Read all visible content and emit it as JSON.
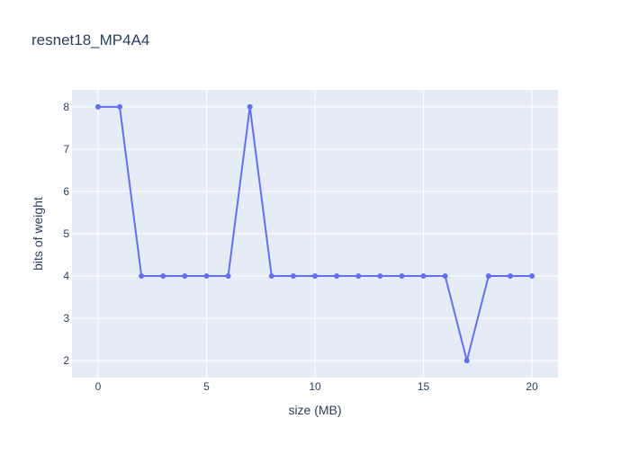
{
  "chart_data": {
    "type": "line",
    "title": "resnet18_MP4A4",
    "xlabel": "size (MB)",
    "ylabel": "bits of weight",
    "x": [
      0,
      1,
      2,
      3,
      4,
      5,
      6,
      7,
      8,
      9,
      10,
      11,
      12,
      13,
      14,
      15,
      16,
      17,
      18,
      19,
      20
    ],
    "series": [
      {
        "values": [
          8,
          8,
          4,
          4,
          4,
          4,
          4,
          8,
          4,
          4,
          4,
          4,
          4,
          4,
          4,
          4,
          4,
          2,
          4,
          4,
          4
        ]
      }
    ],
    "xlim": [
      -1.2,
      21.2
    ],
    "ylim": [
      1.6,
      8.4
    ],
    "xticks": [
      0,
      5,
      10,
      15,
      20
    ],
    "yticks": [
      2,
      3,
      4,
      5,
      6,
      7,
      8
    ],
    "grid": true,
    "colors": {
      "line": "#636efa",
      "plot_bg": "#e5ecf6",
      "grid": "#ffffff",
      "text": "#2a3f5f"
    }
  }
}
